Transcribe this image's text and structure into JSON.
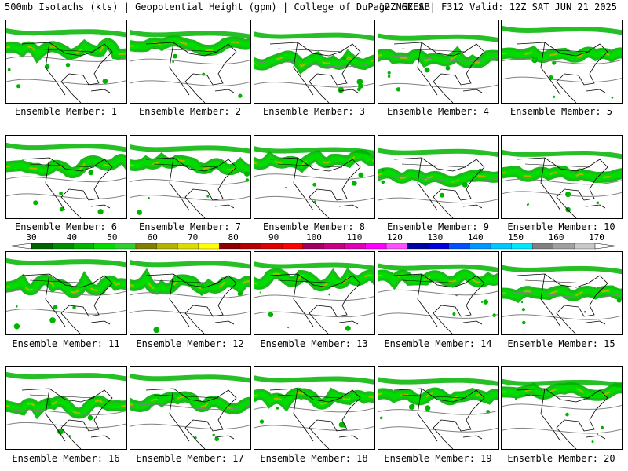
{
  "header": {
    "left": "500mb Isotachs (kts) | Geopotential Height (gpm) | College of DuPage NEXLAB",
    "right": "12Z GEFS | F312 Valid: 12Z SAT JUN 21 2025"
  },
  "members": [
    {
      "label": "Ensemble Member: 1"
    },
    {
      "label": "Ensemble Member: 2"
    },
    {
      "label": "Ensemble Member: 3"
    },
    {
      "label": "Ensemble Member: 4"
    },
    {
      "label": "Ensemble Member: 5"
    },
    {
      "label": "Ensemble Member: 6"
    },
    {
      "label": "Ensemble Member: 7"
    },
    {
      "label": "Ensemble Member: 8"
    },
    {
      "label": "Ensemble Member: 9"
    },
    {
      "label": "Ensemble Member: 10"
    },
    {
      "label": "Ensemble Member: 11"
    },
    {
      "label": "Ensemble Member: 12"
    },
    {
      "label": "Ensemble Member: 13"
    },
    {
      "label": "Ensemble Member: 14"
    },
    {
      "label": "Ensemble Member: 15"
    },
    {
      "label": "Ensemble Member: 16"
    },
    {
      "label": "Ensemble Member: 17"
    },
    {
      "label": "Ensemble Member: 18"
    },
    {
      "label": "Ensemble Member: 19"
    },
    {
      "label": "Ensemble Member: 20"
    }
  ],
  "colorbar": {
    "ticks": [
      "30",
      "40",
      "50",
      "60",
      "70",
      "80",
      "90",
      "100",
      "110",
      "120",
      "130",
      "140",
      "150",
      "160",
      "170"
    ],
    "colors": [
      "#006400",
      "#008c00",
      "#00b400",
      "#00dc00",
      "#32cd32",
      "#808000",
      "#b4b400",
      "#dcdc00",
      "#ffff00",
      "#8b0000",
      "#b40000",
      "#dc0000",
      "#ff0000",
      "#a00060",
      "#c80080",
      "#e000b4",
      "#ff00ff",
      "#ff50ff",
      "#0000a0",
      "#0000dc",
      "#0050ff",
      "#0096ff",
      "#00c8ff",
      "#00e6ff",
      "#808080",
      "#a0a0a0",
      "#c8c8c8"
    ]
  }
}
